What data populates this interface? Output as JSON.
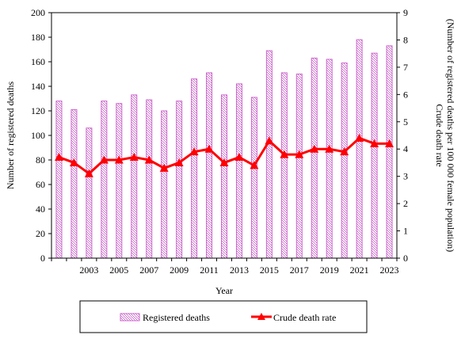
{
  "chart_data": {
    "type": "bar",
    "xlabel": "Year",
    "ylabel": "Number of registered deaths",
    "y2label_line1": "Crude death rate",
    "y2label_line2": "(Number of registered  deaths per 100 000 female population)",
    "ylim": [
      0,
      200
    ],
    "y2lim": [
      0,
      9
    ],
    "yticks": [
      "0",
      "20",
      "40",
      "60",
      "80",
      "100",
      "120",
      "140",
      "160",
      "180",
      "200"
    ],
    "y2ticks": [
      "0",
      "1",
      "2",
      "3",
      "4",
      "5",
      "6",
      "7",
      "8",
      "9"
    ],
    "categories": [
      "2001",
      "2002",
      "2003",
      "2004",
      "2005",
      "2006",
      "2007",
      "2008",
      "2009",
      "2010",
      "2011",
      "2012",
      "2013",
      "2014",
      "2015",
      "2016",
      "2017",
      "2018",
      "2019",
      "2020",
      "2021",
      "2022",
      "2023"
    ],
    "x_tick_labels": [
      "",
      "",
      "2003",
      "",
      "2005",
      "",
      "2007",
      "",
      "2009",
      "",
      "2011",
      "",
      "2013",
      "",
      "2015",
      "",
      "2017",
      "",
      "2019",
      "",
      "2021",
      "",
      "2023"
    ],
    "series": [
      {
        "name": "Registered deaths",
        "kind": "bar",
        "axis": "left",
        "color": "#cc66cc",
        "values": [
          128,
          121,
          106,
          128,
          126,
          133,
          129,
          120,
          128,
          146,
          151,
          133,
          142,
          131,
          169,
          151,
          150,
          163,
          162,
          159,
          178,
          167,
          173
        ]
      },
      {
        "name": "Crude death rate",
        "kind": "line",
        "axis": "right",
        "color": "#ff0000",
        "values": [
          3.7,
          3.5,
          3.1,
          3.6,
          3.6,
          3.7,
          3.6,
          3.3,
          3.5,
          3.9,
          4.0,
          3.5,
          3.7,
          3.4,
          4.3,
          3.8,
          3.8,
          4.0,
          4.0,
          3.9,
          4.4,
          4.2,
          4.2
        ]
      }
    ],
    "legend": {
      "placement": "bottom"
    },
    "grid": false
  }
}
